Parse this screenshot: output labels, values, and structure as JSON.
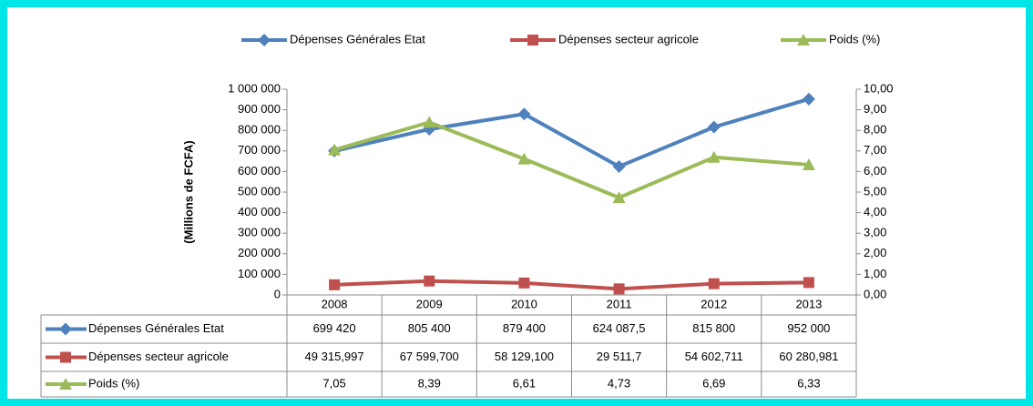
{
  "chart_data": {
    "type": "line",
    "y_label": "(Millions de FCFA)",
    "categories": [
      "2008",
      "2009",
      "2010",
      "2011",
      "2012",
      "2013"
    ],
    "series": [
      {
        "name": "Dépenses Générales Etat",
        "color": "#4f81bd",
        "marker": "diamond",
        "values": [
          699420,
          805400,
          879400,
          624087.5,
          815800,
          952000
        ],
        "value_labels": [
          "699 420",
          "805 400",
          "879 400",
          "624 087,5",
          "815 800",
          "952 000"
        ]
      },
      {
        "name": "Dépenses secteur agricole",
        "color": "#c0504d",
        "marker": "square",
        "values": [
          49315.997,
          67599.7,
          58129.1,
          29511.7,
          54602.711,
          60280.981
        ],
        "value_labels": [
          "49 315,997",
          "67 599,700",
          "58 129,100",
          "29 511,7",
          "54 602,711",
          "60 280,981"
        ]
      },
      {
        "name": "Poids (%)",
        "color": "#9bbb59",
        "marker": "triangle",
        "axis": "y2",
        "values": [
          7.05,
          8.39,
          6.61,
          4.73,
          6.69,
          6.33
        ],
        "value_labels": [
          "7,05",
          "8,39",
          "6,61",
          "4,73",
          "6,69",
          "6,33"
        ]
      }
    ],
    "ylim": [
      0,
      1000000
    ],
    "yticks": [
      0,
      {
        "value": 100000,
        "label": "100 000"
      },
      {
        "value": 200000,
        "label": "200 000"
      },
      {
        "value": 300000,
        "label": "300 000"
      },
      {
        "value": 400000,
        "label": "400 000"
      },
      {
        "value": 500000,
        "label": "500 000"
      },
      {
        "value": 600000,
        "label": "600 000"
      },
      {
        "value": 700000,
        "label": "700 000"
      },
      {
        "value": 800000,
        "label": "800 000"
      },
      {
        "value": 900000,
        "label": "900 000"
      },
      {
        "value": 1000000,
        "label": "1 000 000"
      }
    ],
    "y2lim": [
      0,
      10
    ],
    "y2ticks": [
      {
        "value": 0,
        "label": "0,00"
      },
      {
        "value": 1,
        "label": "1,00"
      },
      {
        "value": 2,
        "label": "2,00"
      },
      {
        "value": 3,
        "label": "3,00"
      },
      {
        "value": 4,
        "label": "4,00"
      },
      {
        "value": 5,
        "label": "5,00"
      },
      {
        "value": 6,
        "label": "6,00"
      },
      {
        "value": 7,
        "label": "7,00"
      },
      {
        "value": 8,
        "label": "8,00"
      },
      {
        "value": 9,
        "label": "9,00"
      },
      {
        "value": 10,
        "label": "10,00"
      }
    ],
    "legend": "top",
    "data_table": true
  }
}
